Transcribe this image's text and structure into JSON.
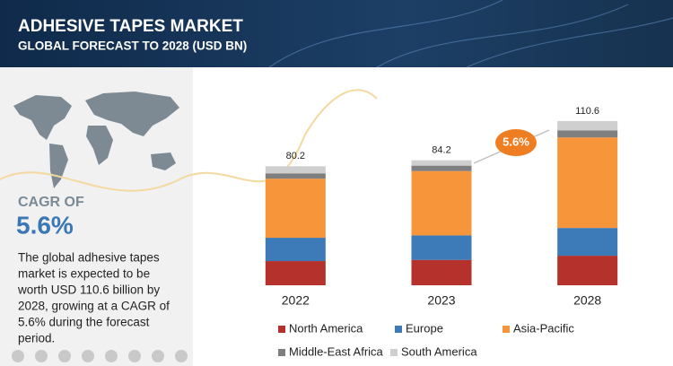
{
  "chart_data": {
    "type": "stacked_bar",
    "title": "ADHESIVE TAPES MARKET",
    "subtitle": "GLOBAL FORECAST TO 2028 (USD BN)",
    "categories": [
      "2022",
      "2023",
      "2028"
    ],
    "series": [
      {
        "name": "North America",
        "color": "#b5312c",
        "values": [
          16.3,
          17.1,
          19.9
        ]
      },
      {
        "name": "Europe",
        "color": "#3d7ab8",
        "values": [
          15.7,
          16.5,
          18.7
        ]
      },
      {
        "name": "Asia-Pacific",
        "color": "#f7953b",
        "values": [
          39.8,
          43.3,
          61.0
        ]
      },
      {
        "name": "Middle-East Africa",
        "color": "#7f7f7f",
        "values": [
          3.6,
          3.7,
          4.8
        ]
      },
      {
        "name": "South America",
        "color": "#cfcfcf",
        "values": [
          4.8,
          3.6,
          6.2
        ]
      }
    ],
    "totals": [
      80.2,
      84.2,
      110.6
    ],
    "growth_badge": "5.6%",
    "cagr_heading": "CAGR OF",
    "cagr_value": "5.6%",
    "description": [
      "The global adhesive tapes",
      "market is expected to be",
      "worth USD 110.6 billion by",
      "2028, growing at a CAGR of",
      "5.6% during the forecast",
      "period."
    ]
  }
}
